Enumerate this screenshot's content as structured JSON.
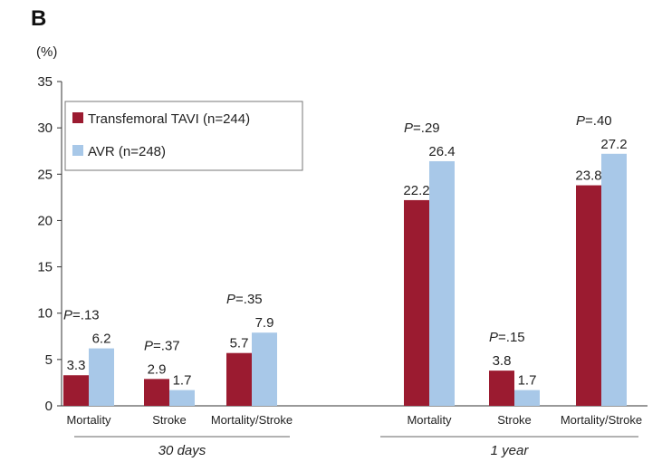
{
  "panel_label": "B",
  "chart_data": {
    "type": "bar",
    "ylabel": "(%)",
    "ylim": [
      0,
      35
    ],
    "yticks": [
      0,
      5,
      10,
      15,
      20,
      25,
      30,
      35
    ],
    "grid": false,
    "legend_position": "top-left",
    "colors": {
      "Transfemoral TAVI (n=244)": "#9b1b30",
      "AVR (n=248)": "#a8c8e8"
    },
    "groups": [
      {
        "label": "30 days",
        "categories": [
          {
            "name": "Mortality",
            "values": [
              3.3,
              6.2
            ],
            "p_value": "=.13"
          },
          {
            "name": "Stroke",
            "values": [
              2.9,
              1.7
            ],
            "p_value": "=.37"
          },
          {
            "name": "Mortality/Stroke",
            "values": [
              5.7,
              7.9
            ],
            "p_value": "=.35"
          }
        ]
      },
      {
        "label": "1 year",
        "categories": [
          {
            "name": "Mortality",
            "values": [
              22.2,
              26.4
            ],
            "p_value": "=.29"
          },
          {
            "name": "Stroke",
            "values": [
              3.8,
              1.7
            ],
            "p_value": "=.15"
          },
          {
            "name": "Mortality/Stroke",
            "values": [
              23.8,
              27.2
            ],
            "p_value": "=.40"
          }
        ]
      }
    ],
    "series": [
      {
        "name": "Transfemoral TAVI (n=244)"
      },
      {
        "name": "AVR (n=248)"
      }
    ],
    "p_prefix": "P"
  }
}
